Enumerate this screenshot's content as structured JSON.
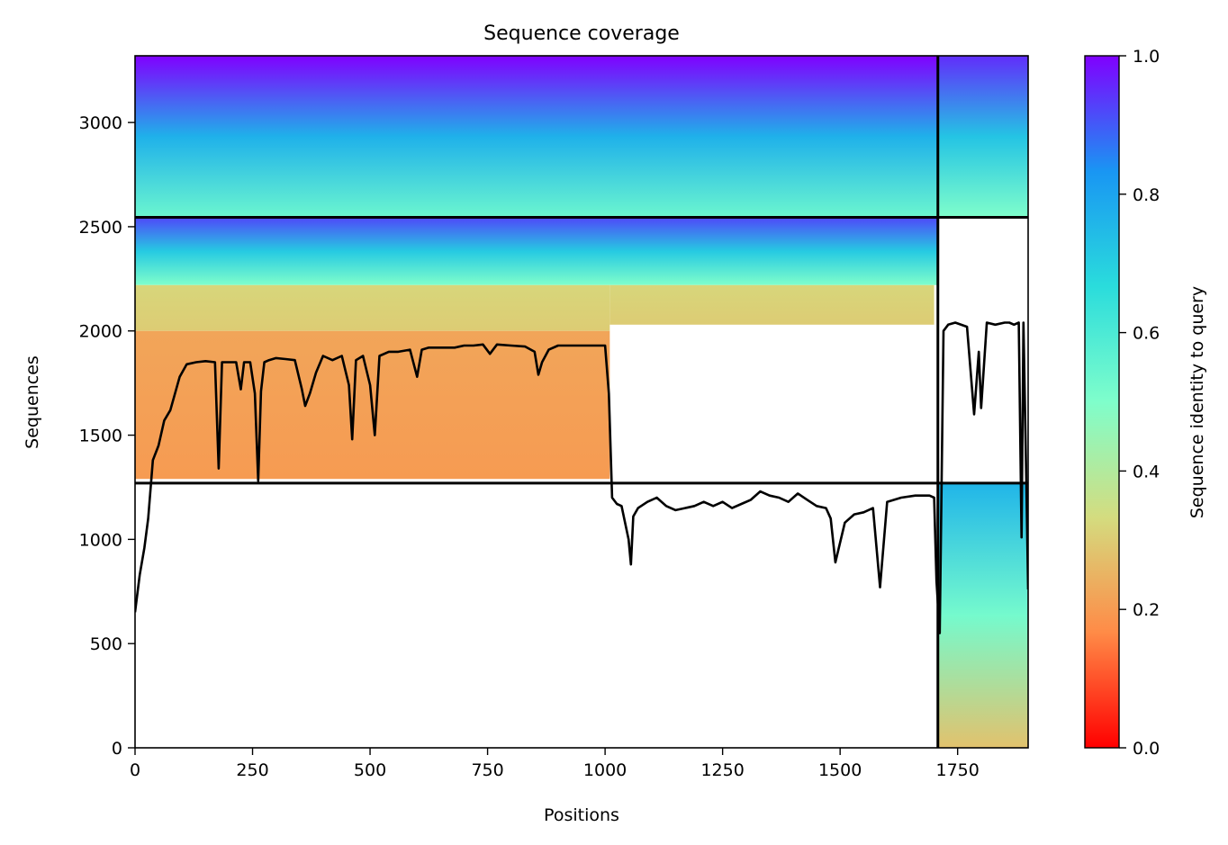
{
  "chart_data": {
    "type": "heatmap",
    "title": "Sequence coverage",
    "xlabel": "Positions",
    "ylabel": "Sequences",
    "xlim": [
      0,
      1900
    ],
    "ylim": [
      0,
      3320
    ],
    "grid": false,
    "x_ticks": [
      0,
      250,
      500,
      750,
      1000,
      1250,
      1500,
      1750
    ],
    "y_ticks": [
      0,
      500,
      1000,
      1500,
      2000,
      2500,
      3000
    ],
    "colorbar": {
      "label": "Sequence identity to query",
      "colormap": "rainbow_r",
      "range": [
        0.0,
        1.0
      ],
      "ticks": [
        "0.0",
        "0.2",
        "0.4",
        "0.6",
        "0.8",
        "1.0"
      ],
      "colors": [
        "#ff0000",
        "#ff8b47",
        "#d4dc7f",
        "#7ffecb",
        "#2adcdc",
        "#1996f3",
        "#8000ff"
      ]
    },
    "chain_boundaries_x": [
      1708
    ],
    "chain_boundaries_y": [
      1270,
      2545
    ],
    "bands": [
      {
        "x": [
          0,
          1708
        ],
        "y": [
          2545,
          3320
        ],
        "identity": [
          0.54,
          1.0
        ]
      },
      {
        "x": [
          1708,
          1900
        ],
        "y": [
          2545,
          3320
        ],
        "identity": [
          0.5,
          0.95
        ]
      },
      {
        "x": [
          0,
          1708
        ],
        "y": [
          2220,
          2545
        ],
        "identity": [
          0.5,
          0.92
        ]
      },
      {
        "x": [
          0,
          1010
        ],
        "y": [
          2000,
          2220
        ],
        "identity": [
          0.3,
          0.32
        ]
      },
      {
        "x": [
          1010,
          1700
        ],
        "y": [
          2030,
          2220
        ],
        "identity": [
          0.3,
          0.32
        ]
      },
      {
        "x": [
          0,
          1010
        ],
        "y": [
          1290,
          2000
        ],
        "identity": [
          0.2,
          0.22
        ]
      },
      {
        "x": [
          1708,
          1900
        ],
        "y": [
          0,
          1270
        ],
        "identity": [
          0.28,
          0.76
        ]
      }
    ],
    "coverage_line": {
      "x": [
        0,
        10,
        20,
        28,
        38,
        50,
        62,
        75,
        95,
        110,
        130,
        150,
        170,
        178,
        185,
        200,
        215,
        225,
        232,
        245,
        255,
        262,
        268,
        275,
        285,
        300,
        320,
        340,
        355,
        362,
        372,
        385,
        400,
        420,
        440,
        455,
        462,
        470,
        485,
        500,
        510,
        520,
        540,
        560,
        585,
        600,
        610,
        625,
        650,
        680,
        700,
        720,
        740,
        755,
        770,
        800,
        830,
        850,
        858,
        866,
        880,
        900,
        930,
        960,
        990,
        1000,
        1008,
        1015,
        1025,
        1035,
        1050,
        1055,
        1060,
        1070,
        1090,
        1110,
        1130,
        1150,
        1170,
        1190,
        1210,
        1230,
        1250,
        1270,
        1290,
        1310,
        1330,
        1350,
        1370,
        1390,
        1410,
        1430,
        1450,
        1470,
        1480,
        1490,
        1510,
        1530,
        1550,
        1570,
        1585,
        1600,
        1630,
        1660,
        1690,
        1700,
        1705,
        1712,
        1720,
        1730,
        1745,
        1770,
        1785,
        1795,
        1800,
        1812,
        1830,
        1850,
        1860,
        1870,
        1880,
        1886,
        1890,
        1896,
        1900
      ],
      "y": [
        650,
        830,
        960,
        1100,
        1380,
        1450,
        1570,
        1620,
        1780,
        1840,
        1850,
        1855,
        1850,
        1340,
        1850,
        1850,
        1850,
        1720,
        1850,
        1850,
        1700,
        1280,
        1710,
        1850,
        1860,
        1870,
        1865,
        1860,
        1720,
        1640,
        1700,
        1800,
        1880,
        1860,
        1880,
        1740,
        1480,
        1860,
        1880,
        1740,
        1500,
        1880,
        1900,
        1900,
        1910,
        1780,
        1910,
        1920,
        1920,
        1920,
        1930,
        1930,
        1935,
        1890,
        1935,
        1930,
        1925,
        1900,
        1790,
        1850,
        1910,
        1930,
        1930,
        1930,
        1930,
        1930,
        1700,
        1200,
        1170,
        1160,
        1000,
        880,
        1110,
        1150,
        1180,
        1200,
        1160,
        1140,
        1150,
        1160,
        1180,
        1160,
        1180,
        1150,
        1170,
        1190,
        1230,
        1210,
        1200,
        1180,
        1220,
        1190,
        1160,
        1150,
        1100,
        890,
        1080,
        1120,
        1130,
        1150,
        770,
        1180,
        1200,
        1210,
        1210,
        1200,
        800,
        550,
        2000,
        2030,
        2040,
        2020,
        1600,
        1900,
        1630,
        2040,
        2030,
        2040,
        2040,
        2030,
        2040,
        1010,
        2040,
        1300,
        760
      ]
    }
  }
}
